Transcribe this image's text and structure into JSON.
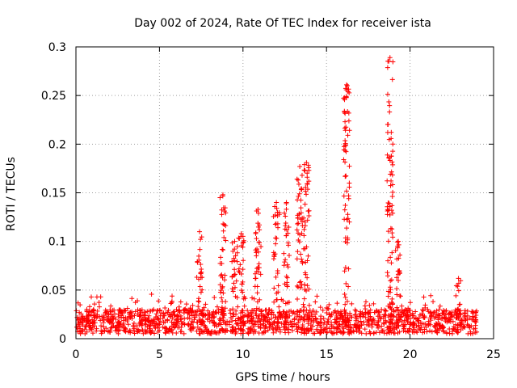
{
  "chart_data": {
    "type": "scatter",
    "title": "Day 002 of 2024, Rate Of TEC Index for receiver ista",
    "xlabel": "GPS time / hours",
    "ylabel": "ROTI / TECUs",
    "xlim": [
      0,
      25
    ],
    "ylim": [
      0,
      0.3
    ],
    "xticks": [
      "0",
      "5",
      "10",
      "15",
      "20",
      "25"
    ],
    "yticks": [
      "0",
      "0.05",
      "0.1",
      "0.15",
      "0.2",
      "0.25",
      "0.3"
    ],
    "grid": true,
    "marker": "+",
    "color": "#ff0000",
    "series": [
      {
        "name": "ROTI",
        "x_range": [
          0,
          24
        ],
        "baseline_range": [
          0.005,
          0.03
        ],
        "spikes": [
          {
            "x": 7.4,
            "y": 0.11
          },
          {
            "x": 8.8,
            "y": 0.148
          },
          {
            "x": 9.5,
            "y": 0.1
          },
          {
            "x": 9.9,
            "y": 0.108
          },
          {
            "x": 10.9,
            "y": 0.133
          },
          {
            "x": 12.0,
            "y": 0.14
          },
          {
            "x": 12.6,
            "y": 0.14
          },
          {
            "x": 13.4,
            "y": 0.177
          },
          {
            "x": 13.8,
            "y": 0.181
          },
          {
            "x": 16.2,
            "y": 0.261
          },
          {
            "x": 18.8,
            "y": 0.289
          },
          {
            "x": 19.3,
            "y": 0.1
          },
          {
            "x": 22.9,
            "y": 0.062
          }
        ]
      }
    ]
  }
}
